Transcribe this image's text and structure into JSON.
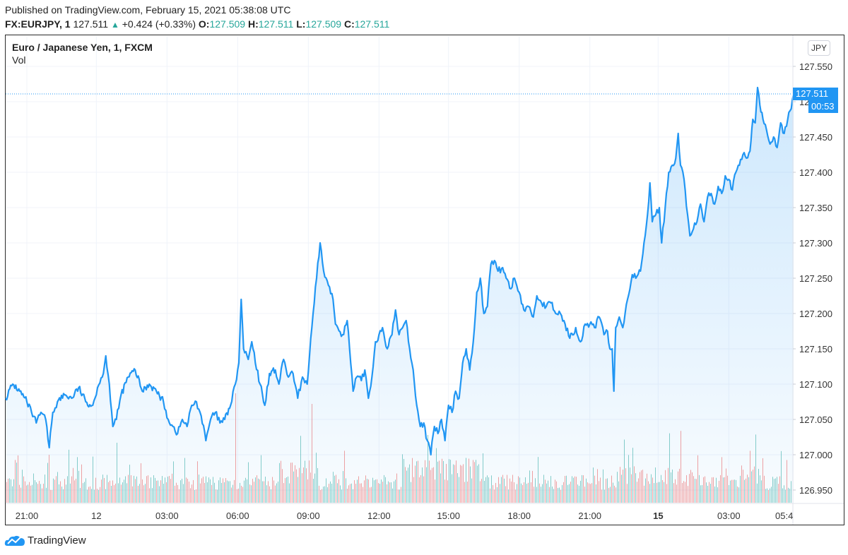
{
  "header": {
    "published": "Published on TradingView.com, February 15, 2021 05:38:08 UTC",
    "symbol": "FX:EURJPY, 1",
    "last": "127.511",
    "change": "+0.424 (+0.33%)",
    "o_label": "O:",
    "o": "127.509",
    "h_label": "H:",
    "h": "127.511",
    "l_label": "L:",
    "l": "127.509",
    "c_label": "C:",
    "c": "127.511",
    "up_color": "#26a69a"
  },
  "pane": {
    "title": "Euro / Japanese Yen, 1, FXCM",
    "volume_label": "Vol",
    "currency_button": "JPY",
    "last_price_label": "127.511",
    "countdown_label": "00:53"
  },
  "footer": {
    "brand": "TradingView"
  },
  "colors": {
    "line": "#2196f3",
    "vol_up": "#26a69a",
    "vol_down": "#ef5350",
    "grid": "#f0f3fa"
  },
  "chart_data": {
    "type": "area",
    "title": "Euro / Japanese Yen, 1, FXCM",
    "xlabel": "",
    "ylabel": "JPY",
    "ylim": [
      126.93,
      127.56
    ],
    "grid": true,
    "legend": "none",
    "y_ticks": [
      "127.550",
      "127.500",
      "127.450",
      "127.400",
      "127.350",
      "127.300",
      "127.250",
      "127.200",
      "127.150",
      "127.100",
      "127.050",
      "127.000",
      "126.950"
    ],
    "x_ticks": [
      {
        "label": "21:00",
        "t": 0.9,
        "bold": false
      },
      {
        "label": "12",
        "t": 3.85,
        "bold": false
      },
      {
        "label": "03:00",
        "t": 6.85,
        "bold": false
      },
      {
        "label": "06:00",
        "t": 9.85,
        "bold": false
      },
      {
        "label": "09:00",
        "t": 12.85,
        "bold": false
      },
      {
        "label": "12:00",
        "t": 15.85,
        "bold": false
      },
      {
        "label": "15:00",
        "t": 18.8,
        "bold": false
      },
      {
        "label": "18:00",
        "t": 21.8,
        "bold": false
      },
      {
        "label": "21:00",
        "t": 24.8,
        "bold": false
      },
      {
        "label": "15",
        "t": 27.7,
        "bold": true
      },
      {
        "label": "03:00",
        "t": 30.7,
        "bold": false
      },
      {
        "label": "05:4",
        "t": 33.05,
        "bold": false
      }
    ],
    "series": [
      {
        "name": "EURJPY close",
        "points": [
          [
            0,
            127.08
          ],
          [
            0.3,
            127.1
          ],
          [
            0.6,
            127.09
          ],
          [
            0.9,
            127.075
          ],
          [
            1.1,
            127.06
          ],
          [
            1.3,
            127.045
          ],
          [
            1.5,
            127.06
          ],
          [
            1.7,
            127.05
          ],
          [
            1.85,
            127.01
          ],
          [
            2.0,
            127.06
          ],
          [
            2.2,
            127.075
          ],
          [
            2.5,
            127.085
          ],
          [
            2.8,
            127.08
          ],
          [
            3.1,
            127.095
          ],
          [
            3.4,
            127.075
          ],
          [
            3.7,
            127.07
          ],
          [
            3.9,
            127.095
          ],
          [
            4.1,
            127.11
          ],
          [
            4.25,
            127.14
          ],
          [
            4.4,
            127.1
          ],
          [
            4.55,
            127.04
          ],
          [
            4.7,
            127.05
          ],
          [
            4.9,
            127.085
          ],
          [
            5.2,
            127.11
          ],
          [
            5.5,
            127.12
          ],
          [
            5.8,
            127.09
          ],
          [
            6.1,
            127.1
          ],
          [
            6.4,
            127.09
          ],
          [
            6.7,
            127.075
          ],
          [
            6.9,
            127.05
          ],
          [
            7.1,
            127.04
          ],
          [
            7.3,
            127.03
          ],
          [
            7.5,
            127.05
          ],
          [
            7.7,
            127.04
          ],
          [
            7.9,
            127.07
          ],
          [
            8.1,
            127.075
          ],
          [
            8.3,
            127.055
          ],
          [
            8.5,
            127.02
          ],
          [
            8.7,
            127.05
          ],
          [
            8.9,
            127.06
          ],
          [
            9.1,
            127.045
          ],
          [
            9.3,
            127.05
          ],
          [
            9.55,
            127.07
          ],
          [
            9.75,
            127.1
          ],
          [
            9.9,
            127.13
          ],
          [
            10.0,
            127.22
          ],
          [
            10.1,
            127.15
          ],
          [
            10.3,
            127.135
          ],
          [
            10.45,
            127.16
          ],
          [
            10.6,
            127.13
          ],
          [
            10.8,
            127.1
          ],
          [
            11.0,
            127.07
          ],
          [
            11.2,
            127.115
          ],
          [
            11.45,
            127.12
          ],
          [
            11.6,
            127.1
          ],
          [
            11.8,
            127.135
          ],
          [
            12.0,
            127.11
          ],
          [
            12.2,
            127.115
          ],
          [
            12.4,
            127.08
          ],
          [
            12.6,
            127.11
          ],
          [
            12.8,
            127.1
          ],
          [
            13.0,
            127.18
          ],
          [
            13.2,
            127.25
          ],
          [
            13.35,
            127.3
          ],
          [
            13.5,
            127.26
          ],
          [
            13.7,
            127.24
          ],
          [
            13.9,
            127.22
          ],
          [
            14.0,
            127.185
          ],
          [
            14.1,
            127.18
          ],
          [
            14.3,
            127.17
          ],
          [
            14.5,
            127.19
          ],
          [
            14.6,
            127.15
          ],
          [
            14.75,
            127.09
          ],
          [
            14.9,
            127.11
          ],
          [
            15.1,
            127.105
          ],
          [
            15.25,
            127.12
          ],
          [
            15.4,
            127.08
          ],
          [
            15.55,
            127.11
          ],
          [
            15.7,
            127.16
          ],
          [
            15.85,
            127.17
          ],
          [
            16.0,
            127.18
          ],
          [
            16.2,
            127.15
          ],
          [
            16.4,
            127.17
          ],
          [
            16.55,
            127.205
          ],
          [
            16.7,
            127.17
          ],
          [
            16.85,
            127.18
          ],
          [
            17.0,
            127.19
          ],
          [
            17.15,
            127.15
          ],
          [
            17.3,
            127.12
          ],
          [
            17.45,
            127.07
          ],
          [
            17.6,
            127.04
          ],
          [
            17.75,
            127.045
          ],
          [
            17.9,
            127.02
          ],
          [
            18.05,
            127.0
          ],
          [
            18.2,
            127.04
          ],
          [
            18.35,
            127.03
          ],
          [
            18.5,
            127.05
          ],
          [
            18.65,
            127.02
          ],
          [
            18.8,
            127.07
          ],
          [
            18.95,
            127.06
          ],
          [
            19.1,
            127.09
          ],
          [
            19.25,
            127.08
          ],
          [
            19.4,
            127.13
          ],
          [
            19.55,
            127.15
          ],
          [
            19.7,
            127.12
          ],
          [
            19.85,
            127.16
          ],
          [
            20.0,
            127.23
          ],
          [
            20.15,
            127.25
          ],
          [
            20.3,
            127.2
          ],
          [
            20.45,
            127.21
          ],
          [
            20.6,
            127.27
          ],
          [
            20.75,
            127.275
          ],
          [
            20.9,
            127.26
          ],
          [
            21.1,
            127.265
          ],
          [
            21.25,
            127.25
          ],
          [
            21.45,
            127.235
          ],
          [
            21.6,
            127.25
          ],
          [
            21.8,
            127.23
          ],
          [
            22.0,
            127.205
          ],
          [
            22.2,
            127.21
          ],
          [
            22.4,
            127.195
          ],
          [
            22.55,
            127.225
          ],
          [
            22.75,
            127.215
          ],
          [
            22.95,
            127.21
          ],
          [
            23.15,
            127.215
          ],
          [
            23.35,
            127.2
          ],
          [
            23.55,
            127.2
          ],
          [
            23.75,
            127.185
          ],
          [
            23.95,
            127.165
          ],
          [
            24.2,
            127.18
          ],
          [
            24.4,
            127.16
          ],
          [
            24.6,
            127.185
          ],
          [
            24.8,
            127.185
          ],
          [
            25.0,
            127.18
          ],
          [
            25.2,
            127.195
          ],
          [
            25.4,
            127.17
          ],
          [
            25.55,
            127.175
          ],
          [
            25.65,
            127.15
          ],
          [
            25.75,
            127.15
          ],
          [
            25.82,
            127.09
          ],
          [
            25.9,
            127.18
          ],
          [
            26.05,
            127.195
          ],
          [
            26.2,
            127.18
          ],
          [
            26.4,
            127.22
          ],
          [
            26.6,
            127.255
          ],
          [
            26.75,
            127.25
          ],
          [
            26.95,
            127.26
          ],
          [
            27.1,
            127.3
          ],
          [
            27.25,
            127.34
          ],
          [
            27.35,
            127.385
          ],
          [
            27.45,
            127.33
          ],
          [
            27.6,
            127.34
          ],
          [
            27.75,
            127.35
          ],
          [
            27.85,
            127.3
          ],
          [
            28.0,
            127.35
          ],
          [
            28.15,
            127.4
          ],
          [
            28.3,
            127.41
          ],
          [
            28.45,
            127.42
          ],
          [
            28.55,
            127.455
          ],
          [
            28.65,
            127.41
          ],
          [
            28.8,
            127.39
          ],
          [
            28.95,
            127.34
          ],
          [
            29.05,
            127.31
          ],
          [
            29.2,
            127.32
          ],
          [
            29.35,
            127.33
          ],
          [
            29.5,
            127.355
          ],
          [
            29.65,
            127.33
          ],
          [
            29.8,
            127.365
          ],
          [
            29.95,
            127.37
          ],
          [
            30.1,
            127.355
          ],
          [
            30.25,
            127.38
          ],
          [
            30.4,
            127.37
          ],
          [
            30.55,
            127.395
          ],
          [
            30.7,
            127.39
          ],
          [
            30.85,
            127.375
          ],
          [
            31.0,
            127.4
          ],
          [
            31.15,
            127.41
          ],
          [
            31.3,
            127.425
          ],
          [
            31.45,
            127.42
          ],
          [
            31.6,
            127.43
          ],
          [
            31.72,
            127.475
          ],
          [
            31.82,
            127.47
          ],
          [
            31.92,
            127.52
          ],
          [
            32.02,
            127.495
          ],
          [
            32.15,
            127.475
          ],
          [
            32.3,
            127.46
          ],
          [
            32.45,
            127.44
          ],
          [
            32.6,
            127.45
          ],
          [
            32.75,
            127.435
          ],
          [
            32.9,
            127.47
          ],
          [
            33.05,
            127.455
          ],
          [
            33.2,
            127.475
          ],
          [
            33.35,
            127.49
          ],
          [
            33.45,
            127.511
          ]
        ]
      },
      {
        "name": "Volume",
        "note": "Per-minute volume histogram, bars colored green (up) / red (down); values unlabeled, relative scale"
      }
    ]
  }
}
